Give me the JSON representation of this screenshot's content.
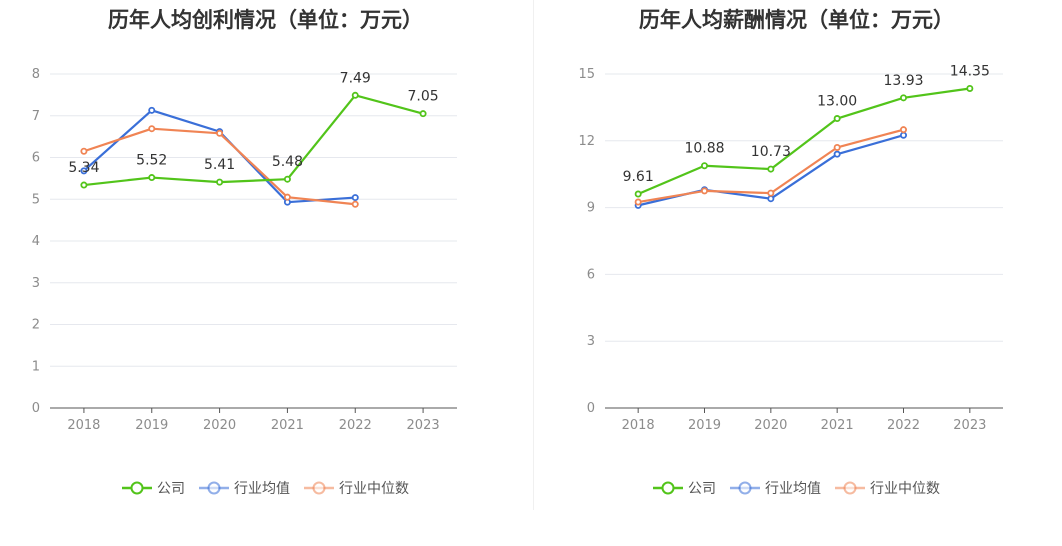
{
  "colors": {
    "company": "#52c41a",
    "avg": "#3a6fd8",
    "median": "#f08454"
  },
  "legend_items": [
    {
      "key": "company",
      "label": "公司"
    },
    {
      "key": "avg",
      "label": "行业均值"
    },
    {
      "key": "median",
      "label": "行业中位数"
    }
  ],
  "chart_data": [
    {
      "type": "line",
      "title": "历年人均创利情况（单位：万元）",
      "categories": [
        "2018",
        "2019",
        "2020",
        "2021",
        "2022",
        "2023"
      ],
      "ylim": [
        0,
        8
      ],
      "yticks": [
        0,
        1,
        2,
        3,
        4,
        5,
        6,
        7,
        8
      ],
      "grid": true,
      "legend_position": "bottom",
      "series": [
        {
          "name": "公司",
          "key": "company",
          "values": [
            5.34,
            5.52,
            5.41,
            5.48,
            7.49,
            7.05
          ],
          "labels": [
            "5.34",
            "5.52",
            "5.41",
            "5.48",
            "7.49",
            "7.05"
          ]
        },
        {
          "name": "行业均值",
          "key": "avg",
          "values": [
            5.68,
            7.13,
            6.62,
            4.93,
            5.04,
            null
          ]
        },
        {
          "name": "行业中位数",
          "key": "median",
          "values": [
            6.15,
            6.69,
            6.58,
            5.05,
            4.88,
            null
          ]
        }
      ]
    },
    {
      "type": "line",
      "title": "历年人均薪酬情况（单位：万元）",
      "categories": [
        "2018",
        "2019",
        "2020",
        "2021",
        "2022",
        "2023"
      ],
      "ylim": [
        0,
        15
      ],
      "yticks": [
        0,
        3,
        6,
        9,
        12,
        15
      ],
      "grid": true,
      "legend_position": "bottom",
      "series": [
        {
          "name": "公司",
          "key": "company",
          "values": [
            9.61,
            10.88,
            10.73,
            13.0,
            13.93,
            14.35
          ],
          "labels": [
            "9.61",
            "10.88",
            "10.73",
            "13.00",
            "13.93",
            "14.35"
          ]
        },
        {
          "name": "行业均值",
          "key": "avg",
          "values": [
            9.1,
            9.8,
            9.4,
            11.4,
            12.25,
            null
          ]
        },
        {
          "name": "行业中位数",
          "key": "median",
          "values": [
            9.25,
            9.75,
            9.65,
            11.7,
            12.5,
            null
          ]
        }
      ]
    }
  ]
}
